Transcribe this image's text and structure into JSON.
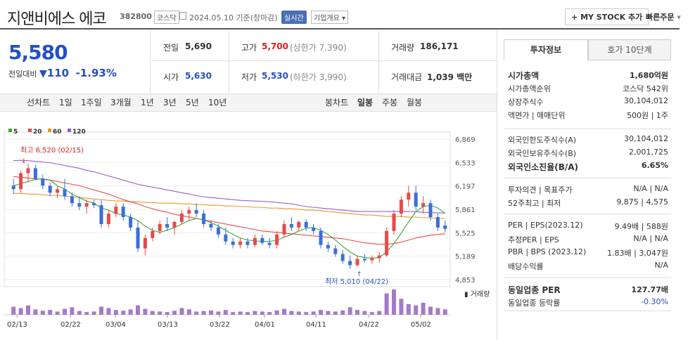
{
  "header": {
    "name": "지앤비에스 에코",
    "code": "382800",
    "market_tag": "코스닥",
    "date_text": "2024.05.10 기준(장마감)",
    "realtime_tag": "실시간",
    "company_info": "기업개요",
    "mystock_btn": "MY STOCK 추가",
    "quick_order": "빠른주문"
  },
  "price": {
    "current": "5,580",
    "change_label": "전일대비",
    "change_value": "110",
    "change_pct": "-1.93%"
  },
  "summary": {
    "prev_label": "전일",
    "prev_val": "5,690",
    "high_label": "고가",
    "high_val": "5,700",
    "upper_limit": "(상한가 7,390)",
    "volume_label": "거래량",
    "volume_val": "186,171",
    "open_label": "시가",
    "open_val": "5,630",
    "low_label": "저가",
    "low_val": "5,530",
    "lower_limit": "(하한가 3,990)",
    "amount_label": "거래대금",
    "amount_val": "1,039 백만"
  },
  "period_bar": {
    "line_chart": "선차트",
    "periods": [
      "1일",
      "1주일",
      "3개월",
      "1년",
      "3년",
      "5년",
      "10년"
    ],
    "candle_chart": "봉차트",
    "candle_types": [
      "일봉",
      "주봉",
      "월봉"
    ]
  },
  "chart_data": {
    "type": "candlestick",
    "legend": [
      "5",
      "20",
      "60",
      "120"
    ],
    "legend_colors": [
      "#3aa53a",
      "#e84a4a",
      "#e8982c",
      "#9c5ccc"
    ],
    "y_ticks": [
      "6,869",
      "6,533",
      "6,197",
      "5,861",
      "5,525",
      "5,189",
      "4,853"
    ],
    "ylim": [
      4853,
      6869
    ],
    "x_labels": [
      "02/13",
      "02/22",
      "03/04",
      "03/13",
      "03/22",
      "04/01",
      "04/11",
      "04/22",
      "05/02"
    ],
    "volume_label": "거래량",
    "high_annotation": "최고 6,520 (02/15)",
    "low_annotation": "최저 5,010 (04/22)",
    "candles": [
      {
        "o": 6200,
        "h": 6300,
        "l": 6080,
        "c": 6150
      },
      {
        "o": 6150,
        "h": 6420,
        "l": 6100,
        "c": 6380
      },
      {
        "o": 6380,
        "h": 6520,
        "l": 6250,
        "c": 6450
      },
      {
        "o": 6450,
        "h": 6500,
        "l": 6280,
        "c": 6300
      },
      {
        "o": 6300,
        "h": 6360,
        "l": 6150,
        "c": 6200
      },
      {
        "o": 6200,
        "h": 6250,
        "l": 6050,
        "c": 6100
      },
      {
        "o": 6100,
        "h": 6200,
        "l": 6020,
        "c": 6150
      },
      {
        "o": 6150,
        "h": 6300,
        "l": 6000,
        "c": 6050
      },
      {
        "o": 6050,
        "h": 6100,
        "l": 5900,
        "c": 5950
      },
      {
        "o": 5950,
        "h": 6050,
        "l": 5850,
        "c": 5900
      },
      {
        "o": 5900,
        "h": 6000,
        "l": 5800,
        "c": 5950
      },
      {
        "o": 5950,
        "h": 6000,
        "l": 5880,
        "c": 5920
      },
      {
        "o": 5920,
        "h": 6000,
        "l": 5600,
        "c": 5650
      },
      {
        "o": 5650,
        "h": 5850,
        "l": 5600,
        "c": 5800
      },
      {
        "o": 5800,
        "h": 5950,
        "l": 5750,
        "c": 5900
      },
      {
        "o": 5900,
        "h": 5950,
        "l": 5700,
        "c": 5750
      },
      {
        "o": 5750,
        "h": 5800,
        "l": 5550,
        "c": 5600
      },
      {
        "o": 5600,
        "h": 5700,
        "l": 5250,
        "c": 5300
      },
      {
        "o": 5300,
        "h": 5500,
        "l": 5200,
        "c": 5450
      },
      {
        "o": 5450,
        "h": 5600,
        "l": 5400,
        "c": 5550
      },
      {
        "o": 5550,
        "h": 5700,
        "l": 5500,
        "c": 5650
      },
      {
        "o": 5650,
        "h": 5750,
        "l": 5550,
        "c": 5600
      },
      {
        "o": 5600,
        "h": 5700,
        "l": 5500,
        "c": 5680
      },
      {
        "o": 5680,
        "h": 5850,
        "l": 5650,
        "c": 5800
      },
      {
        "o": 5800,
        "h": 5900,
        "l": 5700,
        "c": 5850
      },
      {
        "o": 5850,
        "h": 5950,
        "l": 5750,
        "c": 5800
      },
      {
        "o": 5800,
        "h": 5850,
        "l": 5600,
        "c": 5650
      },
      {
        "o": 5650,
        "h": 5700,
        "l": 5550,
        "c": 5600
      },
      {
        "o": 5600,
        "h": 5650,
        "l": 5450,
        "c": 5500
      },
      {
        "o": 5500,
        "h": 5600,
        "l": 5350,
        "c": 5400
      },
      {
        "o": 5400,
        "h": 5450,
        "l": 5300,
        "c": 5350
      },
      {
        "o": 5350,
        "h": 5450,
        "l": 5300,
        "c": 5400
      },
      {
        "o": 5400,
        "h": 5450,
        "l": 5300,
        "c": 5350
      },
      {
        "o": 5350,
        "h": 5500,
        "l": 5320,
        "c": 5450
      },
      {
        "o": 5450,
        "h": 5500,
        "l": 5350,
        "c": 5380
      },
      {
        "o": 5380,
        "h": 5450,
        "l": 5300,
        "c": 5350
      },
      {
        "o": 5350,
        "h": 5550,
        "l": 5300,
        "c": 5500
      },
      {
        "o": 5500,
        "h": 5700,
        "l": 5450,
        "c": 5650
      },
      {
        "o": 5650,
        "h": 5750,
        "l": 5550,
        "c": 5600
      },
      {
        "o": 5600,
        "h": 5700,
        "l": 5550,
        "c": 5680
      },
      {
        "o": 5680,
        "h": 5720,
        "l": 5550,
        "c": 5600
      },
      {
        "o": 5600,
        "h": 5650,
        "l": 5500,
        "c": 5550
      },
      {
        "o": 5550,
        "h": 5600,
        "l": 5300,
        "c": 5350
      },
      {
        "o": 5350,
        "h": 5400,
        "l": 5250,
        "c": 5300
      },
      {
        "o": 5300,
        "h": 5350,
        "l": 5180,
        "c": 5220
      },
      {
        "o": 5220,
        "h": 5280,
        "l": 5080,
        "c": 5120
      },
      {
        "o": 5120,
        "h": 5200,
        "l": 5010,
        "c": 5060
      },
      {
        "o": 5060,
        "h": 5200,
        "l": 5040,
        "c": 5150
      },
      {
        "o": 5150,
        "h": 5220,
        "l": 5100,
        "c": 5130
      },
      {
        "o": 5130,
        "h": 5200,
        "l": 5080,
        "c": 5160
      },
      {
        "o": 5160,
        "h": 5250,
        "l": 5100,
        "c": 5200
      },
      {
        "o": 5200,
        "h": 5600,
        "l": 5180,
        "c": 5550
      },
      {
        "o": 5550,
        "h": 5850,
        "l": 5500,
        "c": 5800
      },
      {
        "o": 5800,
        "h": 6050,
        "l": 5750,
        "c": 6000
      },
      {
        "o": 6000,
        "h": 6200,
        "l": 5900,
        "c": 6100
      },
      {
        "o": 6100,
        "h": 6200,
        "l": 5850,
        "c": 5900
      },
      {
        "o": 5900,
        "h": 6050,
        "l": 5800,
        "c": 5950
      },
      {
        "o": 5950,
        "h": 6000,
        "l": 5700,
        "c": 5750
      },
      {
        "o": 5750,
        "h": 5800,
        "l": 5550,
        "c": 5600
      },
      {
        "o": 5630,
        "h": 5700,
        "l": 5530,
        "c": 5580
      }
    ],
    "volumes": [
      30,
      25,
      35,
      20,
      15,
      18,
      12,
      22,
      28,
      14,
      10,
      12,
      30,
      25,
      18,
      15,
      20,
      35,
      22,
      14,
      12,
      10,
      15,
      25,
      20,
      12,
      14,
      16,
      12,
      18,
      10,
      12,
      10,
      14,
      12,
      10,
      16,
      22,
      14,
      12,
      10,
      12,
      18,
      14,
      12,
      16,
      28,
      18,
      14,
      10,
      14,
      80,
      95,
      60,
      40,
      35,
      45,
      30,
      25,
      20
    ],
    "ma5": [
      6200,
      6230,
      6260,
      6290,
      6300,
      6280,
      6200,
      6150,
      6080,
      6030,
      5980,
      5950,
      5880,
      5850,
      5800,
      5780,
      5750,
      5700,
      5620,
      5560,
      5530,
      5560,
      5600,
      5650,
      5700,
      5730,
      5710,
      5670,
      5620,
      5560,
      5500,
      5450,
      5420,
      5410,
      5400,
      5400,
      5420,
      5460,
      5500,
      5550,
      5590,
      5600,
      5560,
      5500,
      5420,
      5330,
      5250,
      5190,
      5170,
      5160,
      5170,
      5250,
      5370,
      5520,
      5680,
      5830,
      5900,
      5920,
      5880,
      5800
    ],
    "ma20": [
      6330,
      6320,
      6310,
      6300,
      6290,
      6280,
      6260,
      6240,
      6220,
      6200,
      6170,
      6140,
      6110,
      6080,
      6040,
      6000,
      5970,
      5940,
      5900,
      5870,
      5840,
      5820,
      5790,
      5770,
      5750,
      5730,
      5710,
      5690,
      5670,
      5650,
      5630,
      5610,
      5590,
      5570,
      5550,
      5540,
      5530,
      5520,
      5510,
      5500,
      5490,
      5480,
      5470,
      5460,
      5450,
      5440,
      5420,
      5400,
      5380,
      5370,
      5360,
      5360,
      5370,
      5390,
      5420,
      5450,
      5470,
      5490,
      5500,
      5510
    ],
    "ma60": [
      6090,
      6090,
      6080,
      6080,
      6070,
      6060,
      6060,
      6050,
      6040,
      6030,
      6020,
      6010,
      6000,
      5990,
      5980,
      5980,
      5970,
      5970,
      5960,
      5960,
      5950,
      5950,
      5950,
      5940,
      5940,
      5930,
      5930,
      5920,
      5920,
      5910,
      5910,
      5900,
      5900,
      5890,
      5890,
      5880,
      5880,
      5870,
      5870,
      5860,
      5850,
      5850,
      5840,
      5830,
      5820,
      5810,
      5800,
      5790,
      5780,
      5780,
      5770,
      5760,
      5760,
      5760,
      5750,
      5750,
      5740,
      5740,
      5730,
      5730
    ],
    "ma120": [
      6560,
      6565,
      6560,
      6550,
      6540,
      6530,
      6510,
      6490,
      6470,
      6450,
      6420,
      6400,
      6370,
      6340,
      6310,
      6280,
      6250,
      6220,
      6200,
      6180,
      6160,
      6140,
      6120,
      6100,
      6080,
      6060,
      6040,
      6030,
      6020,
      6010,
      6000,
      5990,
      5985,
      5980,
      5975,
      5970,
      5960,
      5950,
      5940,
      5920,
      5900,
      5890,
      5880,
      5870,
      5860,
      5850,
      5840,
      5830,
      5830,
      5830,
      5830,
      5830,
      5830,
      5830,
      5830,
      5825,
      5820,
      5815,
      5810,
      5810
    ]
  },
  "side": {
    "tab_invest": "투자정보",
    "tab_quote": "호가 10단계",
    "rows1": [
      {
        "l": "시가총액",
        "r": "1,680억원",
        "bold": true
      },
      {
        "l": "시가총액순위",
        "r": "코스닥 542위"
      },
      {
        "l": "상장주식수",
        "r": "30,104,012"
      },
      {
        "l": "액면가 | 매매단위",
        "r": "500원 | 1주"
      }
    ],
    "rows2": [
      {
        "l": "외국인한도주식수(A)",
        "r": "30,104,012"
      },
      {
        "l": "외국인보유주식수(B)",
        "r": "2,001,725"
      },
      {
        "l": "외국인소진율(B/A)",
        "r": "6.65%",
        "bold": true
      }
    ],
    "rows3": [
      {
        "l": "투자의견 | 목표주가",
        "r": "N/A | N/A"
      },
      {
        "l": "52주최고 | 최저",
        "r": "9,875 | 4,575"
      }
    ],
    "rows4": [
      {
        "l": "PER | EPS(2023.12)",
        "r": "9.49배 | 588원"
      },
      {
        "l": "추정PER | EPS",
        "r": "N/A | N/A"
      },
      {
        "l": "PBR | BPS (2023.12)",
        "r": "1.83배 | 3,047원"
      },
      {
        "l": "배당수익률",
        "r": "N/A"
      }
    ],
    "rows5": [
      {
        "l": "동일업종 PER",
        "r": "127.77배",
        "bold": true
      },
      {
        "l": "동일업종 등락률",
        "r": "-0.30%",
        "blue": true
      }
    ]
  }
}
